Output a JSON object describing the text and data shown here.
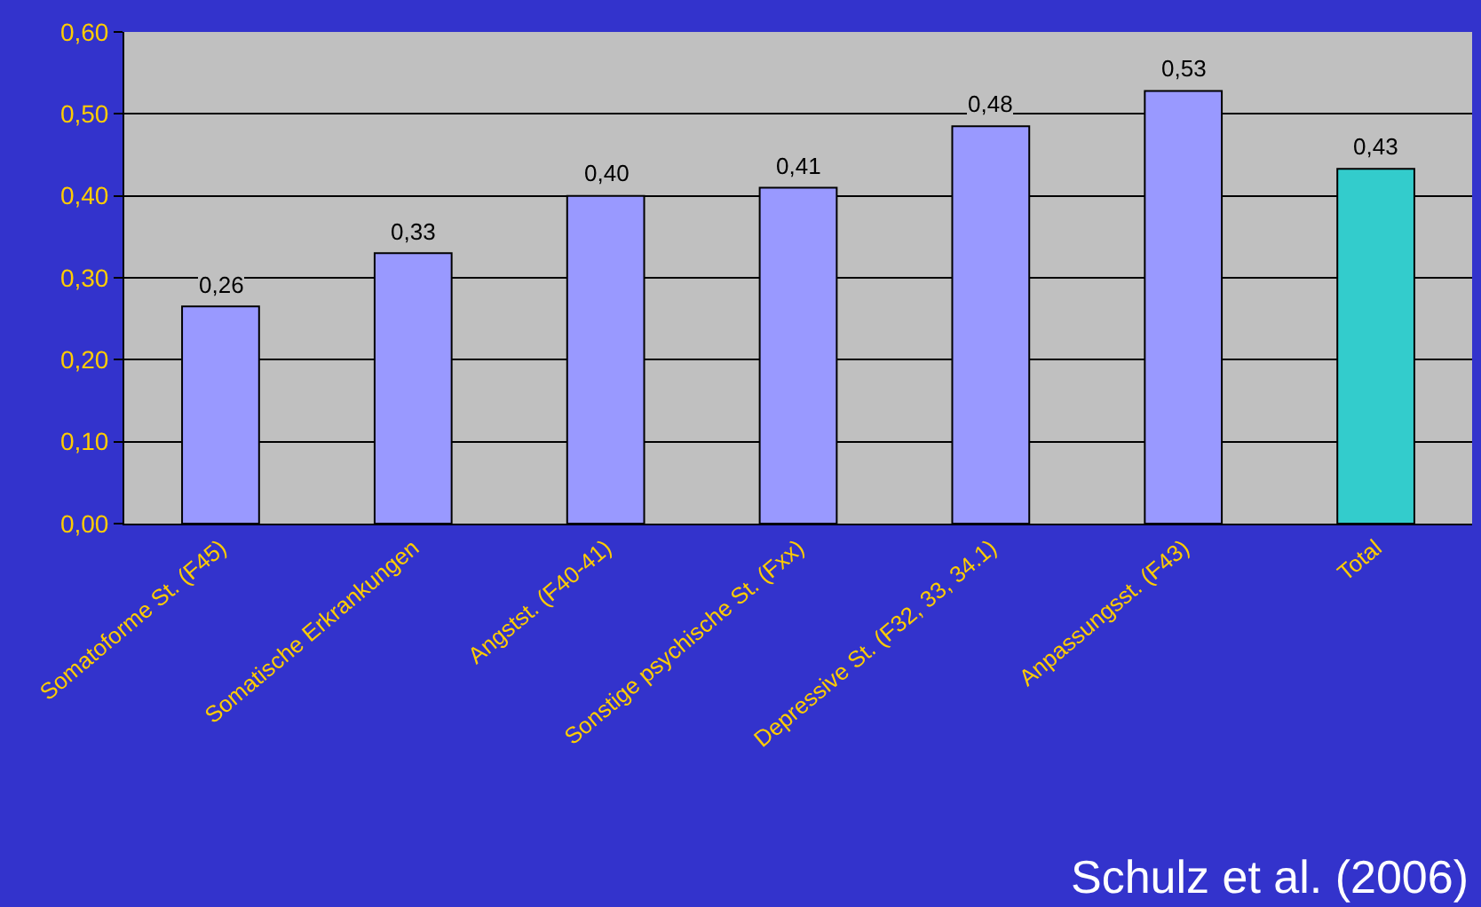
{
  "chart_data": {
    "type": "bar",
    "categories": [
      "Somatoforme St. (F45)",
      "Somatische Erkrankungen",
      "Angstst. (F40-41)",
      "Sonstige psychische St. (Fxx)",
      "Depressive St. (F32, 33, 34.1)",
      "Anpassungsst. (F43)",
      "Total"
    ],
    "values": [
      0.265,
      0.33,
      0.4,
      0.41,
      0.485,
      0.528,
      0.433
    ],
    "value_labels": [
      "0,26",
      "0,33",
      "0,40",
      "0,41",
      "0,48",
      "0,53",
      "0,43"
    ],
    "colors": [
      "#9999ff",
      "#9999ff",
      "#9999ff",
      "#9999ff",
      "#9999ff",
      "#9999ff",
      "#33cccc"
    ],
    "ylim": [
      0,
      0.6
    ],
    "yticks": [
      {
        "value": 0,
        "label": "0,00"
      },
      {
        "value": 0.1,
        "label": "0,10"
      },
      {
        "value": 0.2,
        "label": "0,20"
      },
      {
        "value": 0.3,
        "label": "0,30"
      },
      {
        "value": 0.4,
        "label": "0,40"
      },
      {
        "value": 0.5,
        "label": "0,50"
      },
      {
        "value": 0.6,
        "label": "0,60"
      }
    ],
    "grid": "y",
    "annotations": [
      "Schulz et al. (2006)"
    ]
  }
}
